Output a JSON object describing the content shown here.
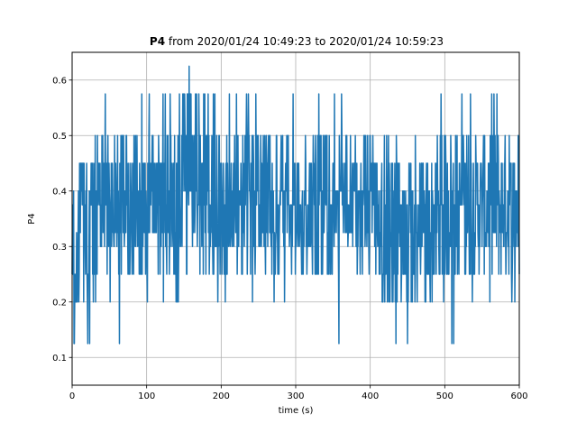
{
  "chart_data": {
    "type": "line",
    "title_bold": "P4",
    "title_rest": " from 2020/01/24 10:49:23 to 2020/01/24 10:59:23",
    "xlabel": "time (s)",
    "ylabel": "P4",
    "xlim": [
      0,
      600
    ],
    "ylim": [
      0.05,
      0.65
    ],
    "xticks": [
      0,
      100,
      200,
      300,
      400,
      500,
      600
    ],
    "yticks": [
      0.1,
      0.2,
      0.3,
      0.4,
      0.5,
      0.6
    ],
    "xtick_labels": [
      "0",
      "100",
      "200",
      "300",
      "400",
      "500",
      "600"
    ],
    "ytick_labels": [
      "0.1",
      "0.2",
      "0.3",
      "0.4",
      "0.5",
      "0.6"
    ],
    "grid": true,
    "series": [
      {
        "color": "#1f77b4",
        "sample_interval_s": 0.5,
        "value_levels": [
          0.075,
          0.125,
          0.2,
          0.25,
          0.3,
          0.325,
          0.375,
          0.4,
          0.45,
          0.5,
          0.575,
          0.625
        ],
        "envelope": {
          "x": [
            0,
            10,
            20,
            40,
            60,
            80,
            100,
            120,
            140,
            150,
            160,
            170,
            180,
            190,
            200,
            220,
            240,
            260,
            280,
            300,
            320,
            340,
            360,
            370,
            380,
            400,
            420,
            440,
            460,
            480,
            500,
            520,
            540,
            560,
            580,
            600
          ],
          "typical_min": [
            0.125,
            0.125,
            0.2,
            0.25,
            0.25,
            0.25,
            0.25,
            0.25,
            0.25,
            0.25,
            0.25,
            0.25,
            0.25,
            0.25,
            0.25,
            0.25,
            0.25,
            0.25,
            0.25,
            0.25,
            0.25,
            0.25,
            0.25,
            0.25,
            0.25,
            0.25,
            0.2,
            0.2,
            0.2,
            0.2,
            0.25,
            0.25,
            0.25,
            0.25,
            0.25,
            0.25
          ],
          "typical_max": [
            0.45,
            0.45,
            0.5,
            0.5,
            0.5,
            0.5,
            0.5,
            0.5,
            0.5,
            0.575,
            0.575,
            0.575,
            0.575,
            0.5,
            0.5,
            0.5,
            0.5,
            0.5,
            0.5,
            0.5,
            0.5,
            0.5,
            0.5,
            0.5,
            0.5,
            0.5,
            0.45,
            0.45,
            0.45,
            0.45,
            0.5,
            0.5,
            0.5,
            0.5,
            0.5,
            0.5
          ],
          "extreme_min": [
            0.125,
            0.075,
            0.125,
            0.125,
            0.125,
            0.2,
            0.2,
            0.2,
            0.2,
            0.25,
            0.25,
            0.25,
            0.25,
            0.2,
            0.2,
            0.2,
            0.2,
            0.2,
            0.2,
            0.2,
            0.125,
            0.125,
            0.125,
            0.075,
            0.2,
            0.2,
            0.125,
            0.125,
            0.125,
            0.125,
            0.125,
            0.125,
            0.2,
            0.2,
            0.2,
            0.2
          ],
          "extreme_max": [
            0.45,
            0.45,
            0.5,
            0.575,
            0.575,
            0.575,
            0.575,
            0.575,
            0.575,
            0.625,
            0.625,
            0.625,
            0.575,
            0.575,
            0.575,
            0.575,
            0.575,
            0.575,
            0.575,
            0.575,
            0.575,
            0.575,
            0.575,
            0.575,
            0.575,
            0.575,
            0.5,
            0.5,
            0.5,
            0.5,
            0.575,
            0.575,
            0.625,
            0.575,
            0.575,
            0.5
          ]
        }
      }
    ]
  }
}
